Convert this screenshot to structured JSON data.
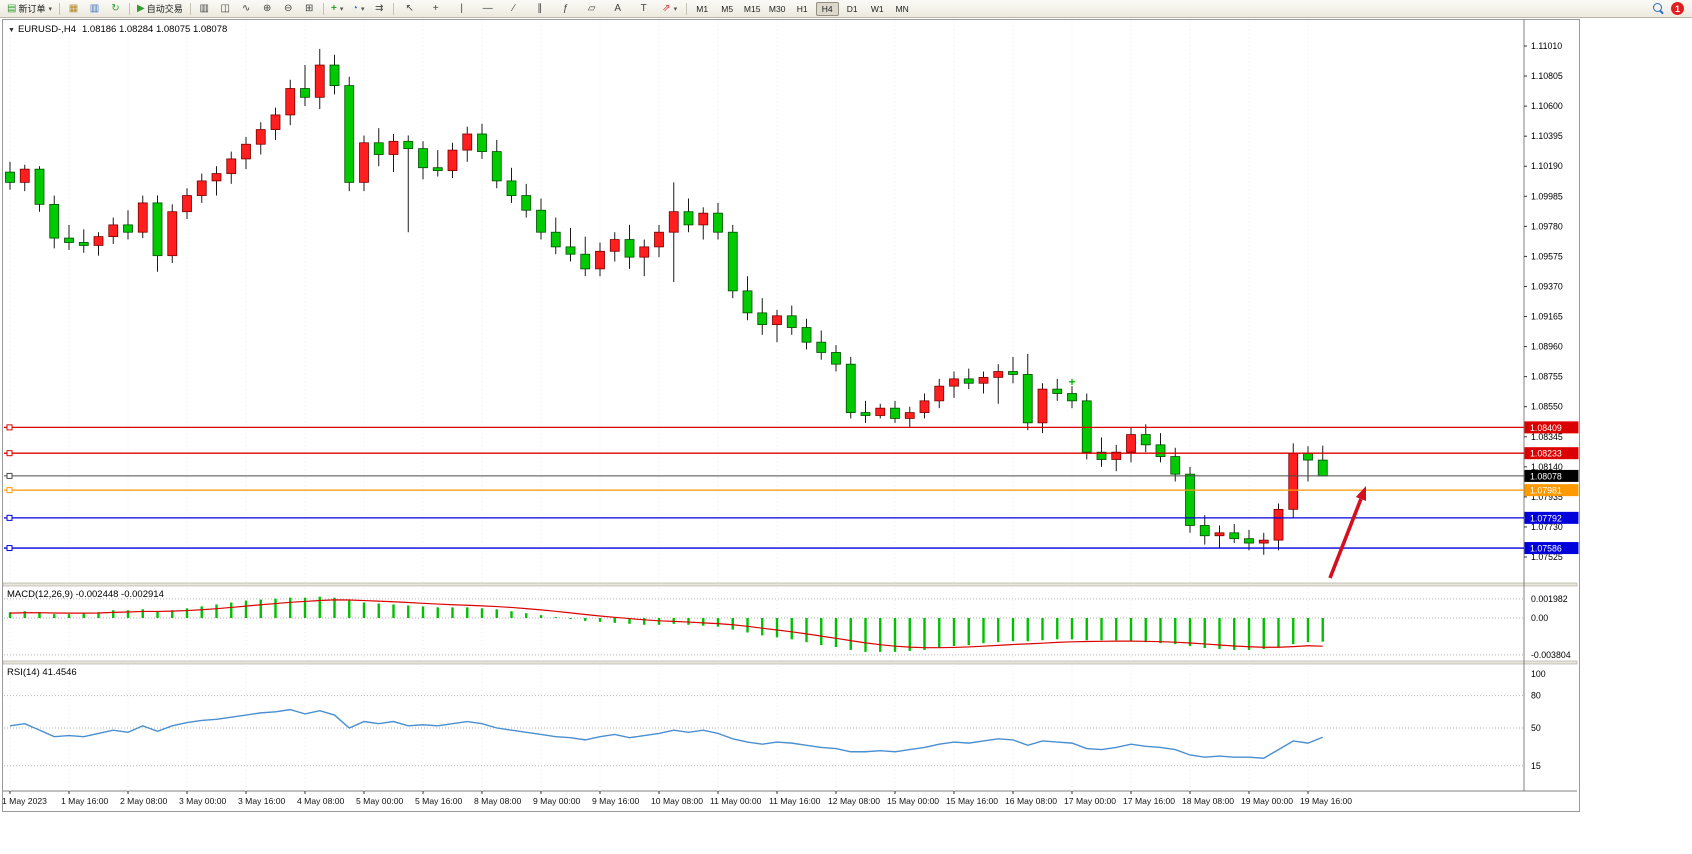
{
  "toolbar": {
    "new_order_label": "新订单",
    "auto_trading_label": "自动交易",
    "timeframes": [
      "M1",
      "M5",
      "M15",
      "M30",
      "H1",
      "H4",
      "D1",
      "W1",
      "MN"
    ],
    "active_timeframe": "H4",
    "badge_count": "1",
    "glyphs": {
      "new_order": "▤",
      "dropdown": "▾",
      "chart_window": "▦",
      "market_watch": "▥",
      "refresh": "↻",
      "auto_play": "▶",
      "bar_chart": "▥",
      "candle_chart": "◫",
      "line_chart": "∿",
      "zoom_in": "⊕",
      "zoom_out": "⊖",
      "tile_windows": "⊞",
      "indicators_add": "+",
      "clock": "◔",
      "chart_shift": "⇉",
      "cursor": "↖",
      "crosshair": "+",
      "vline": "|",
      "hline": "―",
      "trendline": "∕",
      "channel": "∥",
      "fibonacci": "ƒ",
      "shapes": "▱",
      "text": "A",
      "text_label": "T",
      "arrows": "⇗"
    }
  },
  "chart_data": {
    "type": "candlestick",
    "symbol": "EURUSD-,H4",
    "ohlc_line": "1.08186 1.08284 1.08075 1.08078",
    "menu_glyph": "▼",
    "colors": {
      "up": "#ff1f1f",
      "down": "#00ca00",
      "wick": "#1a1a1a"
    },
    "ylim": {
      "price_min": 1.0733,
      "price_max": 1.1119
    },
    "price_axis": {
      "ticks": [
        "1.11010",
        "1.10805",
        "1.10600",
        "1.10395",
        "1.10190",
        "1.09985",
        "1.09780",
        "1.09575",
        "1.09370",
        "1.09165",
        "1.08960",
        "1.08755",
        "1.08550",
        "1.08345",
        "1.08140",
        "1.07935",
        "1.07730",
        "1.07525"
      ]
    },
    "time_axis": {
      "label_every": 4,
      "labels": [
        "1 May 2023",
        "1 May 16:00",
        "2 May 08:00",
        "3 May 00:00",
        "3 May 16:00",
        "4 May 08:00",
        "5 May 00:00",
        "5 May 16:00",
        "8 May 08:00",
        "9 May 00:00",
        "9 May 16:00",
        "10 May 08:00",
        "11 May 00:00",
        "11 May 16:00",
        "12 May 08:00",
        "15 May 00:00",
        "15 May 16:00",
        "16 May 08:00",
        "17 May 00:00",
        "17 May 16:00",
        "18 May 08:00",
        "19 May 00:00",
        "19 May 16:00"
      ]
    },
    "candles": [
      [
        1.1015,
        1.1022,
        1.1003,
        1.1008
      ],
      [
        1.1008,
        1.102,
        1.1002,
        1.1017
      ],
      [
        1.1017,
        1.1019,
        1.0988,
        1.0993
      ],
      [
        1.0993,
        1.0999,
        1.0963,
        1.097
      ],
      [
        1.097,
        1.0979,
        1.0962,
        1.0967
      ],
      [
        1.0967,
        1.0976,
        1.096,
        1.0965
      ],
      [
        1.0965,
        1.0974,
        1.0958,
        1.0971
      ],
      [
        1.0971,
        1.0984,
        1.0966,
        1.0979
      ],
      [
        1.0979,
        1.0989,
        1.0969,
        1.0974
      ],
      [
        1.0974,
        1.0999,
        1.097,
        1.0994
      ],
      [
        1.0994,
        1.0999,
        1.0947,
        1.0958
      ],
      [
        1.0958,
        1.0993,
        1.0953,
        1.0988
      ],
      [
        1.0988,
        1.1004,
        1.0983,
        1.0999
      ],
      [
        1.0999,
        1.1014,
        1.0994,
        1.1009
      ],
      [
        1.1009,
        1.1019,
        1.0999,
        1.1014
      ],
      [
        1.1014,
        1.1029,
        1.1007,
        1.1024
      ],
      [
        1.1024,
        1.1039,
        1.1017,
        1.1034
      ],
      [
        1.1034,
        1.1049,
        1.1027,
        1.1044
      ],
      [
        1.1044,
        1.1059,
        1.1037,
        1.1054
      ],
      [
        1.1054,
        1.1078,
        1.1047,
        1.1072
      ],
      [
        1.1072,
        1.1088,
        1.106,
        1.1066
      ],
      [
        1.1066,
        1.1099,
        1.1058,
        1.1088
      ],
      [
        1.1088,
        1.1095,
        1.1068,
        1.1074
      ],
      [
        1.1074,
        1.108,
        1.1002,
        1.1008
      ],
      [
        1.1008,
        1.104,
        1.1002,
        1.1035
      ],
      [
        1.1035,
        1.1045,
        1.1019,
        1.1027
      ],
      [
        1.1027,
        1.1041,
        1.1015,
        1.1036
      ],
      [
        1.1036,
        1.104,
        1.0974,
        1.1031
      ],
      [
        1.1031,
        1.1036,
        1.101,
        1.1018
      ],
      [
        1.1018,
        1.103,
        1.1012,
        1.1016
      ],
      [
        1.1016,
        1.1035,
        1.1011,
        1.103
      ],
      [
        1.103,
        1.1046,
        1.1022,
        1.1041
      ],
      [
        1.1041,
        1.1048,
        1.1024,
        1.1029
      ],
      [
        1.1029,
        1.1037,
        1.1004,
        1.1009
      ],
      [
        1.1009,
        1.1018,
        1.0994,
        1.0999
      ],
      [
        1.0999,
        1.1007,
        1.0984,
        1.0989
      ],
      [
        1.0989,
        1.0997,
        1.0969,
        1.0974
      ],
      [
        1.0974,
        1.0984,
        1.0959,
        1.0964
      ],
      [
        1.0964,
        1.0977,
        1.0954,
        1.0959
      ],
      [
        1.0959,
        1.0971,
        1.0944,
        1.0949
      ],
      [
        1.0949,
        1.0967,
        1.0944,
        1.0961
      ],
      [
        1.0961,
        1.0974,
        1.0954,
        1.0969
      ],
      [
        1.0969,
        1.0979,
        1.0949,
        1.0957
      ],
      [
        1.0957,
        1.0969,
        1.0944,
        1.0964
      ],
      [
        1.0964,
        1.0979,
        1.0957,
        1.0974
      ],
      [
        1.0974,
        1.1008,
        1.094,
        1.0988
      ],
      [
        1.0988,
        1.0997,
        1.0974,
        1.0979
      ],
      [
        1.0979,
        1.0991,
        1.0969,
        1.0987
      ],
      [
        1.0987,
        1.0994,
        1.0969,
        1.0974
      ],
      [
        1.0974,
        1.0979,
        1.0929,
        1.0934
      ],
      [
        1.0934,
        1.0944,
        1.0914,
        1.0919
      ],
      [
        1.0919,
        1.0929,
        1.0904,
        1.0911
      ],
      [
        1.0911,
        1.0921,
        1.0899,
        1.0917
      ],
      [
        1.0917,
        1.0924,
        1.0904,
        1.0909
      ],
      [
        1.0909,
        1.0915,
        1.0894,
        1.0899
      ],
      [
        1.0899,
        1.0907,
        1.0887,
        1.0892
      ],
      [
        1.0892,
        1.0897,
        1.0879,
        1.0884
      ],
      [
        1.0884,
        1.0889,
        1.0847,
        1.0851
      ],
      [
        1.0851,
        1.0859,
        1.0844,
        1.0849
      ],
      [
        1.0849,
        1.0857,
        1.0847,
        1.0854
      ],
      [
        1.0854,
        1.0859,
        1.0844,
        1.0847
      ],
      [
        1.0847,
        1.0855,
        1.0841,
        1.0851
      ],
      [
        1.0851,
        1.0864,
        1.0847,
        1.0859
      ],
      [
        1.0859,
        1.0874,
        1.0854,
        1.0869
      ],
      [
        1.0869,
        1.0879,
        1.0861,
        1.0874
      ],
      [
        1.0874,
        1.0881,
        1.0867,
        1.0871
      ],
      [
        1.0871,
        1.0879,
        1.0864,
        1.0875
      ],
      [
        1.0875,
        1.0884,
        1.0857,
        1.0879
      ],
      [
        1.0879,
        1.0889,
        1.0871,
        1.0877
      ],
      [
        1.0877,
        1.0891,
        1.0839,
        1.0844
      ],
      [
        1.0844,
        1.0871,
        1.0837,
        1.0867
      ],
      [
        1.0867,
        1.0874,
        1.0859,
        1.0864
      ],
      [
        1.0864,
        1.0869,
        1.0854,
        1.0859
      ],
      [
        1.0859,
        1.0864,
        1.0819,
        1.0824
      ],
      [
        1.0824,
        1.0834,
        1.0814,
        1.0819
      ],
      [
        1.0819,
        1.0829,
        1.0811,
        1.0824
      ],
      [
        1.0824,
        1.0841,
        1.0817,
        1.0836
      ],
      [
        1.0836,
        1.0843,
        1.0824,
        1.0829
      ],
      [
        1.0829,
        1.0837,
        1.0817,
        1.0821
      ],
      [
        1.0821,
        1.0827,
        1.0804,
        1.0809
      ],
      [
        1.0809,
        1.0814,
        1.0769,
        1.0774
      ],
      [
        1.0774,
        1.0781,
        1.0761,
        1.0767
      ],
      [
        1.0767,
        1.0774,
        1.0759,
        1.0769
      ],
      [
        1.0769,
        1.0775,
        1.0762,
        1.0765
      ],
      [
        1.0765,
        1.0771,
        1.0757,
        1.0762
      ],
      [
        1.0762,
        1.0769,
        1.0754,
        1.0764
      ],
      [
        1.0764,
        1.0789,
        1.0757,
        1.0785
      ],
      [
        1.0785,
        1.083,
        1.0779,
        1.0823
      ],
      [
        1.0823,
        1.0828,
        1.0804,
        1.08186
      ],
      [
        1.08186,
        1.08284,
        1.08075,
        1.08078
      ]
    ],
    "levels": [
      {
        "price": 1.08409,
        "label": "1.08409",
        "color": "#dd0000"
      },
      {
        "price": 1.08233,
        "label": "1.08233",
        "color": "#dd0000"
      },
      {
        "price": 1.08078,
        "label": "1.08078",
        "color": "#000000",
        "line_color": "#4a4a4a",
        "role": "current-price"
      },
      {
        "price": 1.07981,
        "label": "1.07981",
        "color": "#ff9900"
      },
      {
        "price": 1.07792,
        "label": "1.07792",
        "color": "#0000dd"
      },
      {
        "price": 1.07586,
        "label": "1.07586",
        "color": "#0000dd"
      }
    ],
    "markers": [
      {
        "index": 72,
        "price": 1.0872,
        "glyph": "+",
        "color": "#00b400"
      }
    ],
    "arrow_annotation": {
      "from": [
        1330,
        578
      ],
      "to": [
        1366,
        486
      ],
      "color": "#d40f1f"
    },
    "macd": {
      "label": "MACD(12,26,9) -0.002448 -0.002914",
      "histogram_color": "#00c000",
      "signal_color": "#dd0000",
      "scale": [
        {
          "label": "0.001982",
          "value": 0.001982,
          "dotted": true
        },
        {
          "label": "0.00",
          "value": 0,
          "dotted": true
        },
        {
          "label": "-0.003804",
          "value": -0.003804,
          "dotted": true
        }
      ],
      "histogram": [
        0.0006,
        0.0007,
        0.0006,
        0.0004,
        0.0004,
        0.0005,
        0.0006,
        0.0008,
        0.0008,
        0.0009,
        0.0007,
        0.0008,
        0.001,
        0.0012,
        0.0014,
        0.0016,
        0.0018,
        0.0019,
        0.002,
        0.0021,
        0.0021,
        0.0022,
        0.0021,
        0.0018,
        0.0016,
        0.0015,
        0.0014,
        0.0013,
        0.0012,
        0.0011,
        0.0011,
        0.0011,
        0.001,
        0.0009,
        0.0007,
        0.0005,
        0.0003,
        0.0001,
        -0.0001,
        -0.0003,
        -0.0004,
        -0.0005,
        -0.0006,
        -0.0007,
        -0.0007,
        -0.0006,
        -0.0007,
        -0.0008,
        -0.0009,
        -0.0012,
        -0.0015,
        -0.0018,
        -0.002,
        -0.0022,
        -0.0025,
        -0.0028,
        -0.003,
        -0.0033,
        -0.0035,
        -0.0035,
        -0.0035,
        -0.0034,
        -0.0033,
        -0.0031,
        -0.0029,
        -0.0028,
        -0.0026,
        -0.0025,
        -0.0024,
        -0.0024,
        -0.0023,
        -0.0022,
        -0.0022,
        -0.0023,
        -0.0023,
        -0.0023,
        -0.0024,
        -0.0025,
        -0.0026,
        -0.0027,
        -0.0029,
        -0.0031,
        -0.0032,
        -0.0033,
        -0.0033,
        -0.0032,
        -0.003,
        -0.0027,
        -0.0025,
        -0.002448
      ],
      "signal": [
        0.0005,
        0.00054,
        0.00055,
        0.00052,
        0.0005,
        0.0005,
        0.00052,
        0.00058,
        0.00062,
        0.00068,
        0.00068,
        0.00071,
        0.00077,
        0.00085,
        0.00096,
        0.00109,
        0.00123,
        0.00137,
        0.00149,
        0.00162,
        0.00171,
        0.00181,
        0.00187,
        0.00186,
        0.0018,
        0.00174,
        0.00168,
        0.0016,
        0.00152,
        0.00144,
        0.00137,
        0.00132,
        0.00125,
        0.00118,
        0.00109,
        0.00097,
        0.00084,
        0.00069,
        0.00053,
        0.00036,
        0.00021,
        7e-05,
        -6e-05,
        -0.00019,
        -0.00029,
        -0.00035,
        -0.00042,
        -0.0005,
        -0.00058,
        -0.0007,
        -0.00086,
        -0.00105,
        -0.00124,
        -0.00143,
        -0.00164,
        -0.00187,
        -0.0021,
        -0.00234,
        -0.00257,
        -0.00276,
        -0.00291,
        -0.00301,
        -0.00307,
        -0.00307,
        -0.00304,
        -0.00299,
        -0.00291,
        -0.00283,
        -0.00274,
        -0.00267,
        -0.0026,
        -0.00252,
        -0.00246,
        -0.00243,
        -0.00241,
        -0.00239,
        -0.00239,
        -0.00241,
        -0.00245,
        -0.0025,
        -0.00258,
        -0.00268,
        -0.00279,
        -0.00289,
        -0.00297,
        -0.00302,
        -0.00302,
        -0.00296,
        -0.00287,
        -0.002914
      ]
    },
    "rsi": {
      "label": "RSI(14) 41.4546",
      "color": "#4a8fd0",
      "scale": [
        {
          "label": "100",
          "value": 100,
          "dotted": false
        },
        {
          "label": "80",
          "value": 80,
          "dotted": true
        },
        {
          "label": "50",
          "value": 50,
          "dotted": true
        },
        {
          "label": "15",
          "value": 15,
          "dotted": true
        }
      ],
      "values": [
        52,
        54,
        48,
        42,
        43,
        42,
        45,
        48,
        46,
        52,
        47,
        52,
        55,
        57,
        58,
        60,
        62,
        64,
        65,
        67,
        63,
        66,
        62,
        50,
        56,
        54,
        56,
        52,
        53,
        52,
        54,
        56,
        54,
        50,
        48,
        46,
        44,
        42,
        41,
        39,
        42,
        44,
        41,
        43,
        45,
        48,
        46,
        48,
        45,
        40,
        37,
        35,
        37,
        36,
        34,
        32,
        31,
        28,
        28,
        29,
        28,
        30,
        32,
        35,
        37,
        36,
        38,
        40,
        39,
        34,
        38,
        37,
        36,
        31,
        30,
        32,
        35,
        33,
        32,
        30,
        25,
        23,
        24,
        23,
        23,
        22,
        30,
        38,
        36,
        41.4546
      ]
    }
  }
}
